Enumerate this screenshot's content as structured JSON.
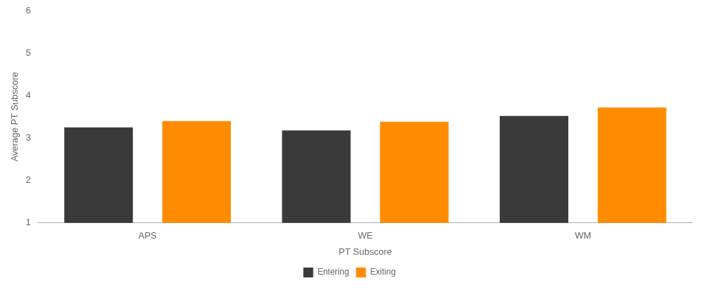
{
  "chart_data": {
    "type": "bar",
    "xlabel": "PT Subscore",
    "ylabel": "Average PT Subscore",
    "categories": [
      "APS",
      "WE",
      "WM"
    ],
    "series": [
      {
        "name": "Entering",
        "color": "#3a3a3a",
        "values": [
          3.25,
          3.18,
          3.52
        ]
      },
      {
        "name": "Exiting",
        "color": "#FF8C00",
        "values": [
          3.4,
          3.38,
          3.72
        ]
      }
    ],
    "ylim": [
      1,
      6
    ],
    "yticks": [
      1,
      2,
      3,
      4,
      5,
      6
    ],
    "grid": false,
    "legend": "bottom"
  }
}
